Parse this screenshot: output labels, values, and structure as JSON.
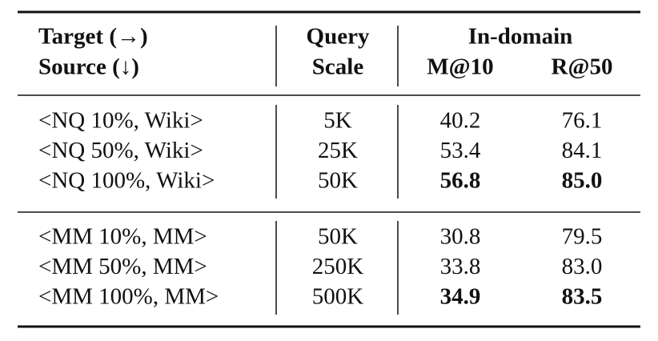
{
  "table": {
    "header": {
      "source_col": [
        "Target (→)",
        "Source (↓)"
      ],
      "scale_col": [
        "Query",
        "Scale"
      ],
      "group": "In-domain",
      "metrics": [
        "M@10",
        "R@50"
      ]
    },
    "groups": [
      {
        "rows": [
          [
            "<NQ 10%, Wiki>",
            "5K",
            "40.2",
            "76.1"
          ],
          [
            "<NQ 50%, Wiki>",
            "25K",
            "53.4",
            "84.1"
          ],
          [
            "<NQ 100%, Wiki>",
            "50K",
            "56.8",
            "85.0"
          ]
        ],
        "bold_row": 2
      },
      {
        "rows": [
          [
            "<MM 10%, MM>",
            "50K",
            "30.8",
            "79.5"
          ],
          [
            "<MM 50%, MM>",
            "250K",
            "33.8",
            "83.0"
          ],
          [
            "<MM 100%, MM>",
            "500K",
            "34.9",
            "83.5"
          ]
        ],
        "bold_row": 2
      }
    ]
  }
}
